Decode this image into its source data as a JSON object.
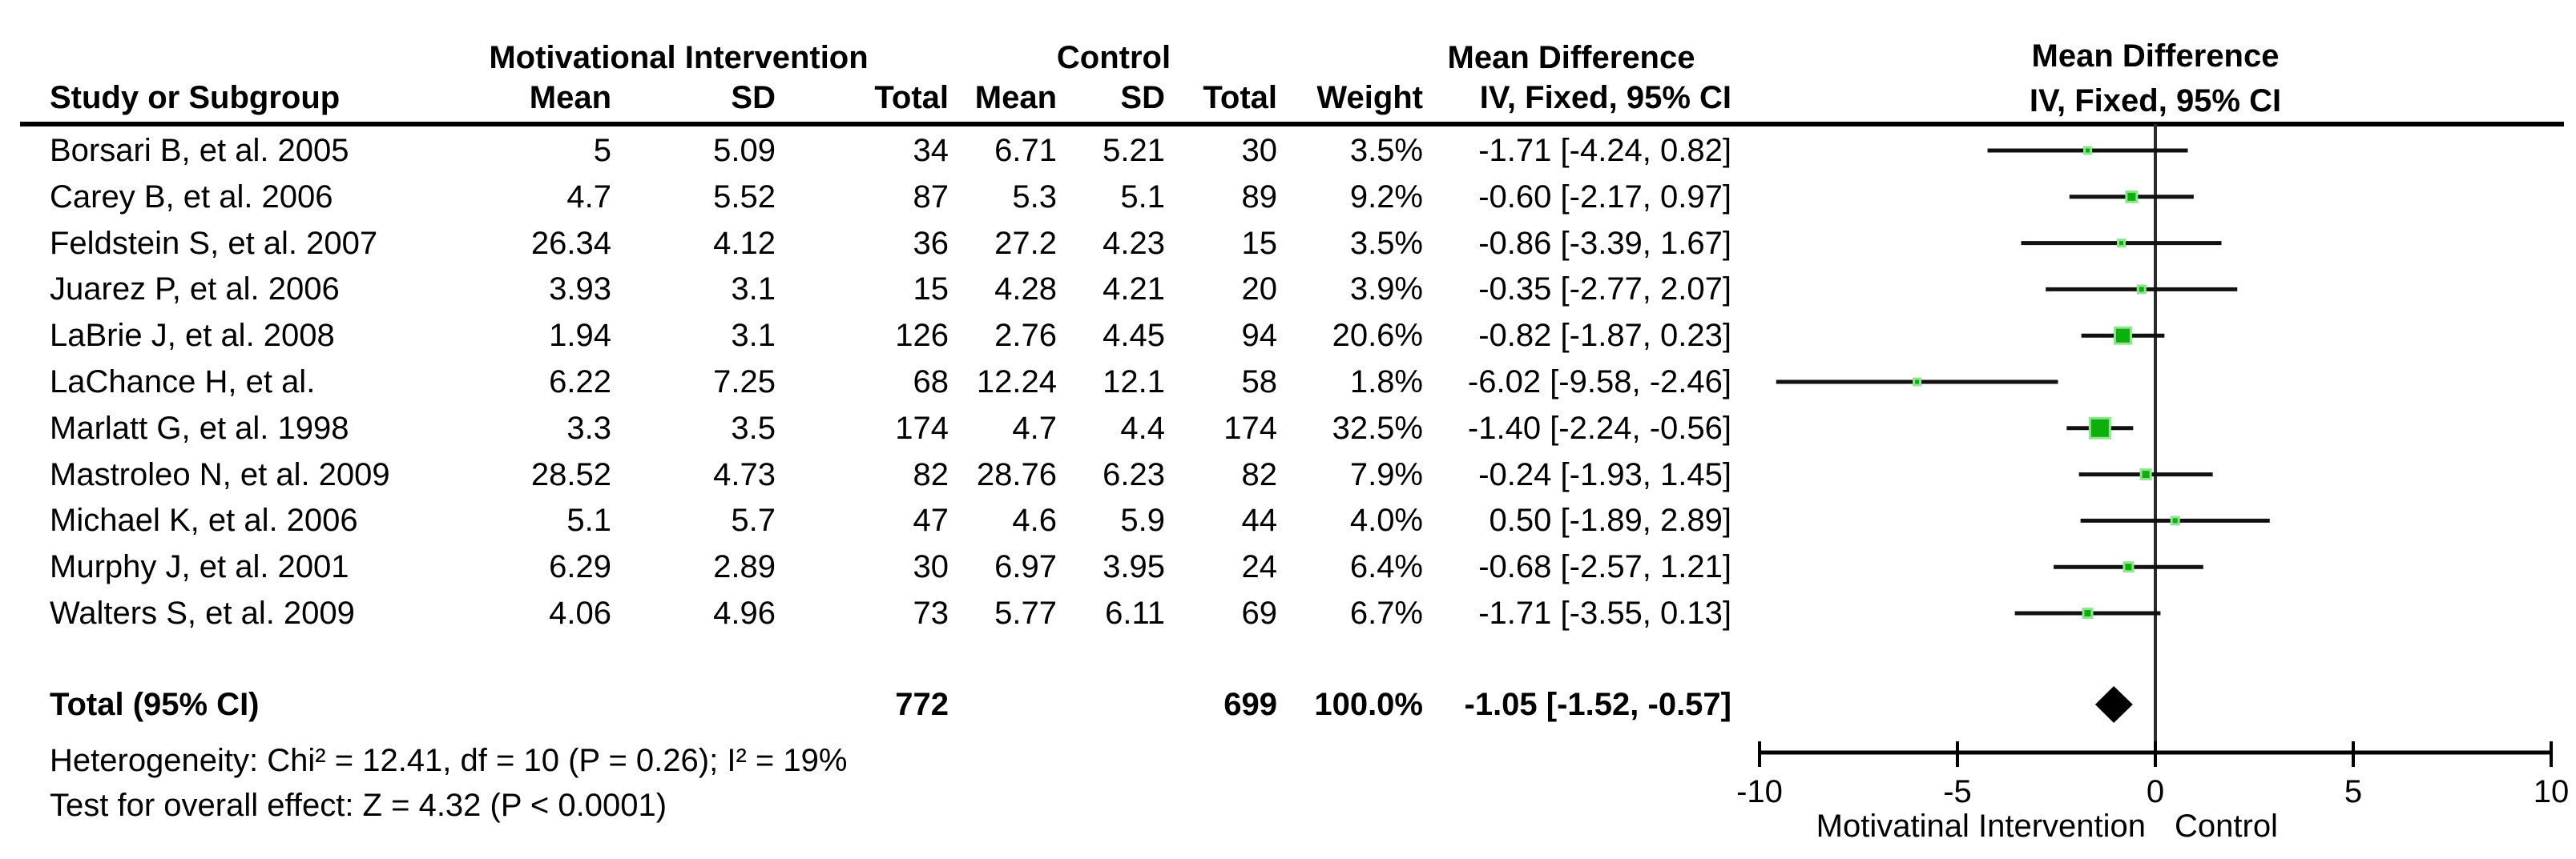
{
  "table": {
    "group_headers": {
      "intervention": "Motivational Intervention",
      "control": "Control",
      "mean_difference": "Mean Difference",
      "plot_line1": "Mean Difference",
      "plot_line2": "IV, Fixed, 95% CI"
    },
    "columns": {
      "study": "Study or Subgroup",
      "mean": "Mean",
      "sd": "SD",
      "total": "Total",
      "mean2": "Mean",
      "sd2": "SD",
      "total2": "Total",
      "weight": "Weight",
      "ci": "IV, Fixed, 95% CI"
    }
  },
  "chart_data": {
    "type": "forest",
    "effect_measure": "Mean Difference, IV, Fixed, 95% CI",
    "studies": [
      {
        "name": "Borsari B, et al. 2005",
        "i_mean": "5",
        "i_sd": "5.09",
        "i_total": "34",
        "c_mean": "6.71",
        "c_sd": "5.21",
        "c_total": "30",
        "weight": "3.5%",
        "ci_text": "-1.71 [-4.24, 0.82]",
        "md": -1.71,
        "lo": -4.24,
        "hi": 0.82,
        "weight_num": 3.5
      },
      {
        "name": "Carey B, et al. 2006",
        "i_mean": "4.7",
        "i_sd": "5.52",
        "i_total": "87",
        "c_mean": "5.3",
        "c_sd": "5.1",
        "c_total": "89",
        "weight": "9.2%",
        "ci_text": "-0.60 [-2.17, 0.97]",
        "md": -0.6,
        "lo": -2.17,
        "hi": 0.97,
        "weight_num": 9.2
      },
      {
        "name": "Feldstein S, et al. 2007",
        "i_mean": "26.34",
        "i_sd": "4.12",
        "i_total": "36",
        "c_mean": "27.2",
        "c_sd": "4.23",
        "c_total": "15",
        "weight": "3.5%",
        "ci_text": "-0.86 [-3.39, 1.67]",
        "md": -0.86,
        "lo": -3.39,
        "hi": 1.67,
        "weight_num": 3.5
      },
      {
        "name": "Juarez P, et al. 2006",
        "i_mean": "3.93",
        "i_sd": "3.1",
        "i_total": "15",
        "c_mean": "4.28",
        "c_sd": "4.21",
        "c_total": "20",
        "weight": "3.9%",
        "ci_text": "-0.35 [-2.77, 2.07]",
        "md": -0.35,
        "lo": -2.77,
        "hi": 2.07,
        "weight_num": 3.9
      },
      {
        "name": "LaBrie J, et al. 2008",
        "i_mean": "1.94",
        "i_sd": "3.1",
        "i_total": "126",
        "c_mean": "2.76",
        "c_sd": "4.45",
        "c_total": "94",
        "weight": "20.6%",
        "ci_text": "-0.82 [-1.87, 0.23]",
        "md": -0.82,
        "lo": -1.87,
        "hi": 0.23,
        "weight_num": 20.6
      },
      {
        "name": "LaChance H, et al.",
        "i_mean": "6.22",
        "i_sd": "7.25",
        "i_total": "68",
        "c_mean": "12.24",
        "c_sd": "12.1",
        "c_total": "58",
        "weight": "1.8%",
        "ci_text": "-6.02 [-9.58, -2.46]",
        "md": -6.02,
        "lo": -9.58,
        "hi": -2.46,
        "weight_num": 1.8
      },
      {
        "name": "Marlatt G, et al. 1998",
        "i_mean": "3.3",
        "i_sd": "3.5",
        "i_total": "174",
        "c_mean": "4.7",
        "c_sd": "4.4",
        "c_total": "174",
        "weight": "32.5%",
        "ci_text": "-1.40 [-2.24, -0.56]",
        "md": -1.4,
        "lo": -2.24,
        "hi": -0.56,
        "weight_num": 32.5
      },
      {
        "name": "Mastroleo N, et al. 2009",
        "i_mean": "28.52",
        "i_sd": "4.73",
        "i_total": "82",
        "c_mean": "28.76",
        "c_sd": "6.23",
        "c_total": "82",
        "weight": "7.9%",
        "ci_text": "-0.24 [-1.93, 1.45]",
        "md": -0.24,
        "lo": -1.93,
        "hi": 1.45,
        "weight_num": 7.9
      },
      {
        "name": "Michael K, et al. 2006",
        "i_mean": "5.1",
        "i_sd": "5.7",
        "i_total": "47",
        "c_mean": "4.6",
        "c_sd": "5.9",
        "c_total": "44",
        "weight": "4.0%",
        "ci_text": "0.50 [-1.89, 2.89]",
        "md": 0.5,
        "lo": -1.89,
        "hi": 2.89,
        "weight_num": 4.0
      },
      {
        "name": "Murphy J, et al. 2001",
        "i_mean": "6.29",
        "i_sd": "2.89",
        "i_total": "30",
        "c_mean": "6.97",
        "c_sd": "3.95",
        "c_total": "24",
        "weight": "6.4%",
        "ci_text": "-0.68 [-2.57, 1.21]",
        "md": -0.68,
        "lo": -2.57,
        "hi": 1.21,
        "weight_num": 6.4
      },
      {
        "name": "Walters S, et al. 2009",
        "i_mean": "4.06",
        "i_sd": "4.96",
        "i_total": "73",
        "c_mean": "5.77",
        "c_sd": "6.11",
        "c_total": "69",
        "weight": "6.7%",
        "ci_text": "-1.71 [-3.55, 0.13]",
        "md": -1.71,
        "lo": -3.55,
        "hi": 0.13,
        "weight_num": 6.7
      }
    ],
    "total_row": {
      "label": "Total (95% CI)",
      "i_total": "772",
      "c_total": "699",
      "weight": "100.0%",
      "ci_text": "-1.05 [-1.52, -0.57]",
      "md": -1.05,
      "lo": -1.52,
      "hi": -0.57
    },
    "heterogeneity": "Heterogeneity: Chi² = 12.41, df = 10 (P = 0.26); I² = 19%",
    "overall_effect": "Test for overall effect: Z = 4.32 (P < 0.0001)",
    "axis": {
      "min": -10,
      "max": 10,
      "ticks": [
        -10,
        -5,
        0,
        5,
        10
      ]
    },
    "footer_left": "Motivatinal Intervention",
    "footer_right": "Control",
    "colors": {
      "square": "#0cb00c",
      "square_border": "#8ee58e",
      "ci_line": "#111111",
      "axis": "#000000",
      "zero_line": "#2b2b2b",
      "diamond": "#000000"
    }
  }
}
